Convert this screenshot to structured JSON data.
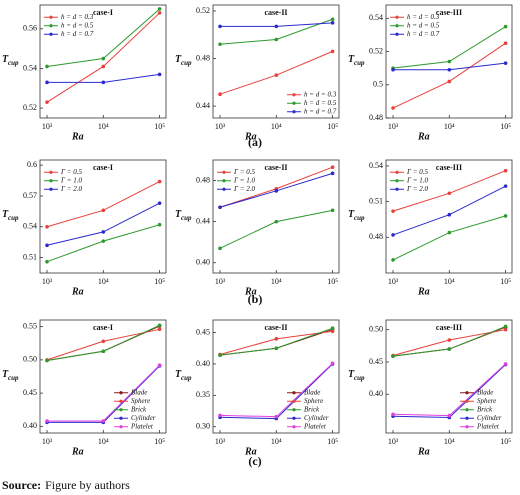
{
  "chart_data": [
    {
      "type": "line",
      "title": "case-I",
      "xlabel": "Ra",
      "ylabel": {
        "main": "T",
        "sub": "cup"
      },
      "xscale": "log",
      "x": [
        1000,
        10000,
        100000
      ],
      "xlim": [
        750,
        130000
      ],
      "xticks": [
        {
          "value": 1000,
          "label": "10³"
        },
        {
          "value": 10000,
          "label": "10⁴"
        },
        {
          "value": 100000,
          "label": "10⁵"
        }
      ],
      "ylim": [
        0.515,
        0.572
      ],
      "yticks": [
        0.52,
        0.54,
        0.56
      ],
      "legend": "upper left",
      "series": [
        {
          "name": "h = d = 0.3",
          "color": "#e8403a",
          "values": [
            0.523,
            0.541,
            0.568
          ]
        },
        {
          "name": "h = d = 0.5",
          "color": "#2e9a2e",
          "values": [
            0.541,
            0.545,
            0.57
          ]
        },
        {
          "name": "h = d = 0.7",
          "color": "#2a2ad0",
          "values": [
            0.533,
            0.533,
            0.537
          ]
        }
      ]
    },
    {
      "type": "line",
      "title": "case-II",
      "xlabel": "Ra",
      "ylabel": {
        "main": "T",
        "sub": "cup"
      },
      "xscale": "log",
      "x": [
        1000,
        10000,
        100000
      ],
      "xlim": [
        750,
        130000
      ],
      "xticks": [
        {
          "value": 1000,
          "label": "10³"
        },
        {
          "value": 10000,
          "label": "10⁴"
        },
        {
          "value": 100000,
          "label": "10⁵"
        }
      ],
      "ylim": [
        0.43,
        0.525
      ],
      "yticks": [
        0.44,
        0.48,
        0.52
      ],
      "legend": "lower right",
      "series": [
        {
          "name": "h = d = 0.3",
          "color": "#e8403a",
          "values": [
            0.45,
            0.466,
            0.486
          ]
        },
        {
          "name": "h = d = 0.5",
          "color": "#2e9a2e",
          "values": [
            0.492,
            0.496,
            0.513
          ]
        },
        {
          "name": "h = d = 0.7",
          "color": "#2a2ad0",
          "values": [
            0.507,
            0.507,
            0.51
          ]
        }
      ]
    },
    {
      "type": "line",
      "title": "case-III",
      "xlabel": "Ra",
      "ylabel": {
        "main": "T",
        "sub": "cup"
      },
      "xscale": "log",
      "x": [
        1000,
        10000,
        100000
      ],
      "xlim": [
        750,
        130000
      ],
      "xticks": [
        {
          "value": 1000,
          "label": "10³"
        },
        {
          "value": 10000,
          "label": "10⁴"
        },
        {
          "value": 100000,
          "label": "10⁵"
        }
      ],
      "ylim": [
        0.48,
        0.548
      ],
      "yticks": [
        0.48,
        0.5,
        0.52,
        0.54
      ],
      "legend": "upper left",
      "series": [
        {
          "name": "h = d = 0.3",
          "color": "#e8403a",
          "values": [
            0.486,
            0.502,
            0.525
          ]
        },
        {
          "name": "h = d = 0.5",
          "color": "#2e9a2e",
          "values": [
            0.51,
            0.514,
            0.535
          ]
        },
        {
          "name": "h = d = 0.7",
          "color": "#2a2ad0",
          "values": [
            0.509,
            0.509,
            0.513
          ]
        }
      ]
    },
    {
      "type": "line",
      "title": "case-I",
      "xlabel": "Ra",
      "ylabel": {
        "main": "T",
        "sub": "cup"
      },
      "xscale": "log",
      "x": [
        1000,
        10000,
        100000
      ],
      "xlim": [
        750,
        130000
      ],
      "xticks": [
        {
          "value": 1000,
          "label": "10³"
        },
        {
          "value": 10000,
          "label": "10⁴"
        },
        {
          "value": 100000,
          "label": "10⁵"
        }
      ],
      "ylim": [
        0.495,
        0.605
      ],
      "yticks": [
        0.51,
        0.54,
        0.57,
        0.6
      ],
      "legend": "upper left",
      "series": [
        {
          "name": "Γ = 0.5",
          "color": "#e8403a",
          "values": [
            0.54,
            0.556,
            0.584
          ]
        },
        {
          "name": "Γ = 1.0",
          "color": "#2e9a2e",
          "values": [
            0.506,
            0.526,
            0.542
          ]
        },
        {
          "name": "Γ = 2.0",
          "color": "#2a2ad0",
          "values": [
            0.522,
            0.535,
            0.563
          ]
        }
      ]
    },
    {
      "type": "line",
      "title": "case-II",
      "xlabel": "Ra",
      "ylabel": {
        "main": "T",
        "sub": "cup"
      },
      "xscale": "log",
      "x": [
        1000,
        10000,
        100000
      ],
      "xlim": [
        750,
        130000
      ],
      "xticks": [
        {
          "value": 1000,
          "label": "10³"
        },
        {
          "value": 10000,
          "label": "10⁴"
        },
        {
          "value": 100000,
          "label": "10⁵"
        }
      ],
      "ylim": [
        0.39,
        0.5
      ],
      "yticks": [
        {
          "value": 0.4,
          "label": "0.40"
        },
        0.44,
        0.48
      ],
      "legend": "upper left",
      "series": [
        {
          "name": "Γ = 0.5",
          "color": "#e8403a",
          "values": [
            0.454,
            0.472,
            0.493
          ]
        },
        {
          "name": "Γ = 1.0",
          "color": "#2e9a2e",
          "values": [
            0.414,
            0.44,
            0.451
          ]
        },
        {
          "name": "Γ = 2.0",
          "color": "#2a2ad0",
          "values": [
            0.454,
            0.47,
            0.487
          ]
        }
      ]
    },
    {
      "type": "line",
      "title": "case-III",
      "xlabel": "Ra",
      "ylabel": {
        "main": "T",
        "sub": "cup"
      },
      "xscale": "log",
      "x": [
        1000,
        10000,
        100000
      ],
      "xlim": [
        750,
        130000
      ],
      "xticks": [
        {
          "value": 1000,
          "label": "10³"
        },
        {
          "value": 10000,
          "label": "10⁴"
        },
        {
          "value": 100000,
          "label": "10⁵"
        }
      ],
      "ylim": [
        0.45,
        0.545
      ],
      "yticks": [
        0.48,
        0.51,
        0.54
      ],
      "legend": "upper left",
      "series": [
        {
          "name": "Γ = 0.5",
          "color": "#e8403a",
          "values": [
            0.502,
            0.517,
            0.536
          ]
        },
        {
          "name": "Γ = 1.0",
          "color": "#2e9a2e",
          "values": [
            0.461,
            0.484,
            0.498
          ]
        },
        {
          "name": "Γ = 2.0",
          "color": "#2a2ad0",
          "values": [
            0.482,
            0.499,
            0.523
          ]
        }
      ]
    },
    {
      "type": "line",
      "title": "case-I",
      "xlabel": "Ra",
      "ylabel": {
        "main": "T",
        "sub": "cup"
      },
      "xscale": "log",
      "x": [
        1000,
        10000,
        100000
      ],
      "xlim": [
        750,
        130000
      ],
      "xticks": [
        {
          "value": 1000,
          "label": "10³"
        },
        {
          "value": 10000,
          "label": "10⁴"
        },
        {
          "value": 100000,
          "label": "10⁵"
        }
      ],
      "ylim": [
        0.39,
        0.56
      ],
      "yticks": [
        {
          "value": 0.4,
          "label": "0.40"
        },
        0.45,
        {
          "value": 0.5,
          "label": "0.50"
        },
        0.55
      ],
      "legend": "lower right",
      "series": [
        {
          "name": "Blade",
          "color": "#8b1a1a",
          "values": [
            0.499,
            0.513,
            0.551
          ]
        },
        {
          "name": "Sphere",
          "color": "#e8403a",
          "values": [
            0.5,
            0.528,
            0.546
          ]
        },
        {
          "name": "Brick",
          "color": "#2e9a2e",
          "values": [
            0.499,
            0.513,
            0.552
          ]
        },
        {
          "name": "Cylinder",
          "color": "#2a2ad0",
          "values": [
            0.406,
            0.406,
            0.491
          ]
        },
        {
          "name": "Platelet",
          "color": "#e040e0",
          "values": [
            0.408,
            0.408,
            0.492
          ]
        }
      ]
    },
    {
      "type": "line",
      "title": "case-II",
      "xlabel": "Ra",
      "ylabel": {
        "main": "T",
        "sub": "cup"
      },
      "xscale": "log",
      "x": [
        1000,
        10000,
        100000
      ],
      "xlim": [
        750,
        130000
      ],
      "xticks": [
        {
          "value": 1000,
          "label": "10³"
        },
        {
          "value": 10000,
          "label": "10⁴"
        },
        {
          "value": 100000,
          "label": "10⁵"
        }
      ],
      "ylim": [
        0.29,
        0.47
      ],
      "yticks": [
        {
          "value": 0.3,
          "label": "0.30"
        },
        0.35,
        {
          "value": 0.4,
          "label": "0.40"
        },
        0.45
      ],
      "legend": "lower right",
      "series": [
        {
          "name": "Blade",
          "color": "#8b1a1a",
          "values": [
            0.414,
            0.425,
            0.455
          ]
        },
        {
          "name": "Sphere",
          "color": "#e8403a",
          "values": [
            0.415,
            0.44,
            0.452
          ]
        },
        {
          "name": "Brick",
          "color": "#2e9a2e",
          "values": [
            0.414,
            0.425,
            0.457
          ]
        },
        {
          "name": "Cylinder",
          "color": "#2a2ad0",
          "values": [
            0.315,
            0.313,
            0.4
          ]
        },
        {
          "name": "Platelet",
          "color": "#e040e0",
          "values": [
            0.318,
            0.316,
            0.401
          ]
        }
      ]
    },
    {
      "type": "line",
      "title": "case-III",
      "xlabel": "Ra",
      "ylabel": {
        "main": "T",
        "sub": "cup"
      },
      "xscale": "log",
      "x": [
        1000,
        10000,
        100000
      ],
      "xlim": [
        750,
        130000
      ],
      "xticks": [
        {
          "value": 1000,
          "label": "10³"
        },
        {
          "value": 10000,
          "label": "10⁴"
        },
        {
          "value": 100000,
          "label": "10⁵"
        }
      ],
      "ylim": [
        0.34,
        0.515
      ],
      "yticks": [
        {
          "value": 0.4,
          "label": "0.40"
        },
        0.45,
        {
          "value": 0.5,
          "label": "0.50"
        }
      ],
      "legend": "lower right",
      "series": [
        {
          "name": "Blade",
          "color": "#8b1a1a",
          "values": [
            0.459,
            0.47,
            0.504
          ]
        },
        {
          "name": "Sphere",
          "color": "#e8403a",
          "values": [
            0.46,
            0.484,
            0.5
          ]
        },
        {
          "name": "Brick",
          "color": "#2e9a2e",
          "values": [
            0.459,
            0.47,
            0.505
          ]
        },
        {
          "name": "Cylinder",
          "color": "#2a2ad0",
          "values": [
            0.366,
            0.364,
            0.446
          ]
        },
        {
          "name": "Platelet",
          "color": "#e040e0",
          "values": [
            0.369,
            0.367,
            0.447
          ]
        }
      ]
    }
  ],
  "panel_labels": [
    "(a)",
    "(b)",
    "(c)"
  ],
  "source": {
    "label": "Source:",
    "text": "Figure by authors"
  }
}
